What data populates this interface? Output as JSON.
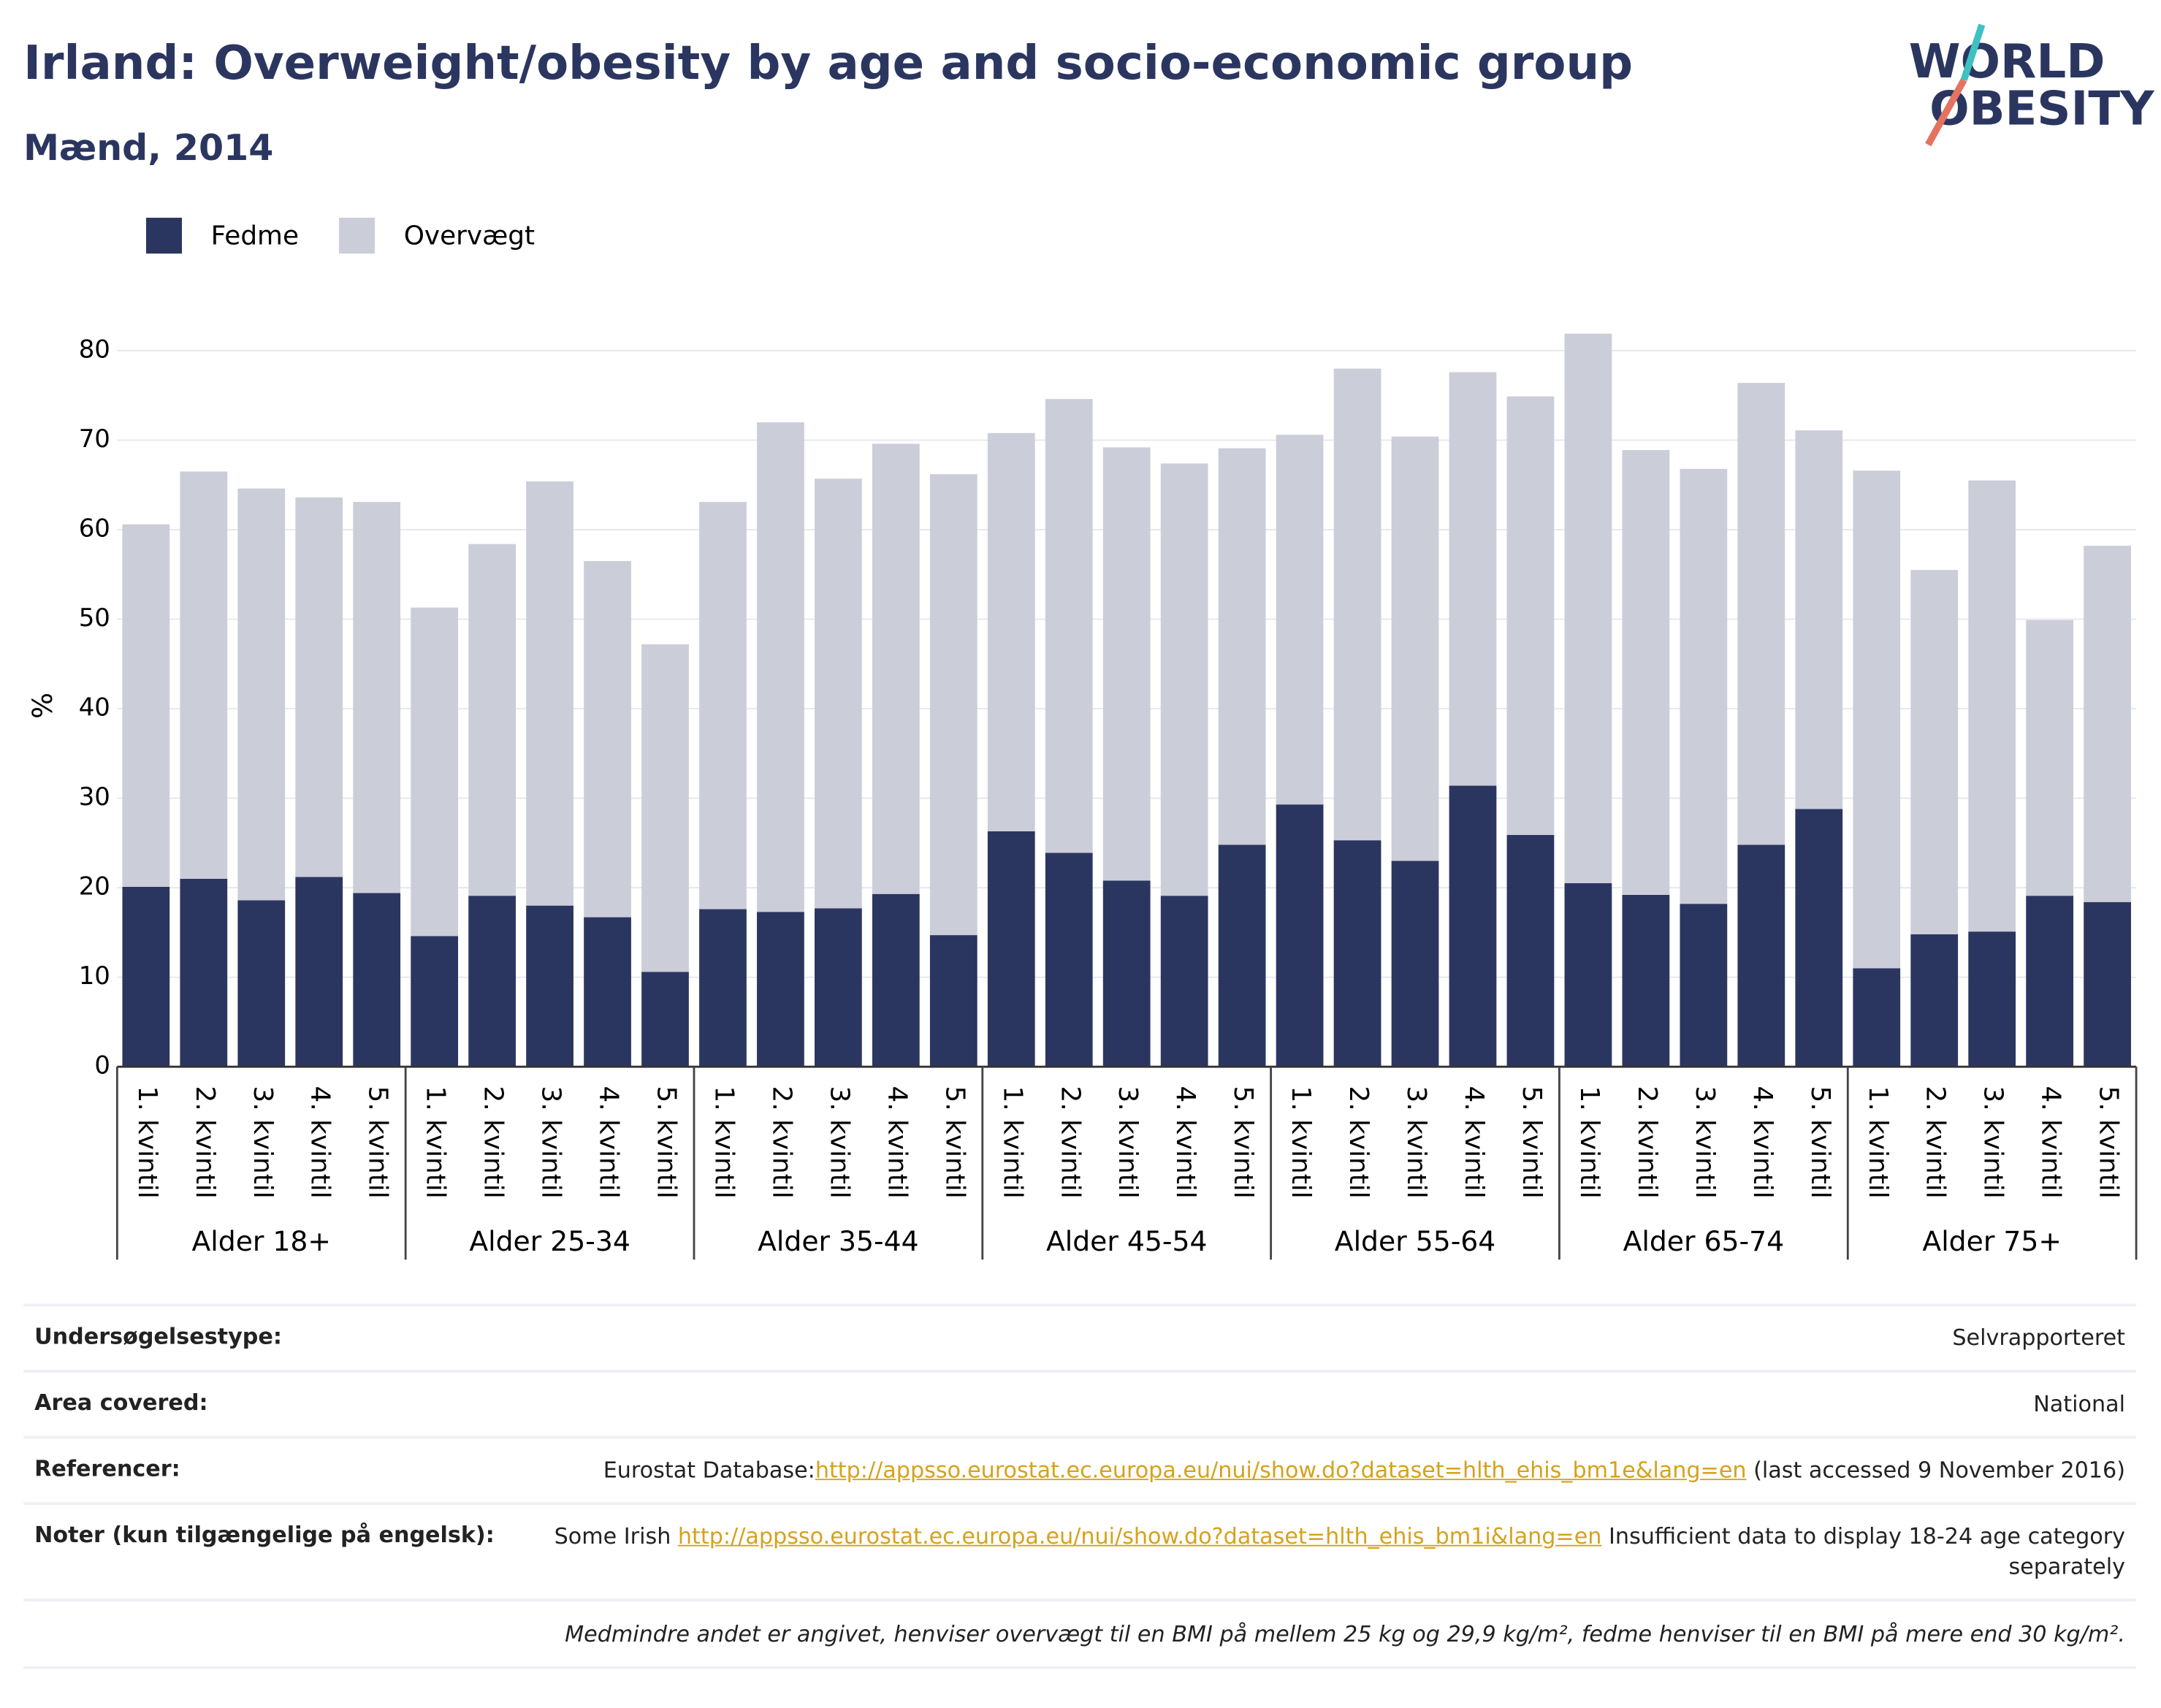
{
  "chart_data": {
    "type": "stacked_bar",
    "title": "Irland: Overweight/obesity by age and socio-economic group",
    "subtitle": "Mænd, 2014",
    "y_label": "%",
    "categories": [
      "1. kvintil",
      "2. kvintil",
      "3. kvintil",
      "4. kvintil",
      "5. kvintil",
      "1. kvintil",
      "2. kvintil",
      "3. kvintil",
      "4. kvintil",
      "5. kvintil",
      "1. kvintil",
      "2. kvintil",
      "3. kvintil",
      "4. kvintil",
      "5. kvintil",
      "1. kvintil",
      "2. kvintil",
      "3. kvintil",
      "4. kvintil",
      "5. kvintil",
      "1. kvintil",
      "2. kvintil",
      "3. kvintil",
      "4. kvintil",
      "5. kvintil",
      "1. kvintil",
      "2. kvintil",
      "3. kvintil",
      "4. kvintil",
      "5. kvintil",
      "1. kvintil",
      "2. kvintil",
      "3. kvintil",
      "4. kvintil",
      "5. kvintil"
    ],
    "groups": [
      "Alder 18+",
      "Alder 25-34",
      "Alder 35-44",
      "Alder 45-54",
      "Alder 55-64",
      "Alder 65-74",
      "Alder 75+"
    ],
    "series": [
      {
        "name": "Fedme",
        "color": "#2b3660",
        "values": [
          20.1,
          21,
          18.6,
          21.2,
          19.4,
          14.6,
          19.1,
          18,
          16.7,
          10.6,
          17.6,
          17.3,
          17.7,
          19.3,
          14.7,
          26.3,
          23.9,
          20.8,
          19.1,
          24.8,
          29.3,
          25.3,
          23,
          31.4,
          25.9,
          20.5,
          19.2,
          18.2,
          24.8,
          28.8,
          11,
          14.8,
          15.1,
          19.1,
          18.4
        ]
      },
      {
        "name": "Overvægt",
        "color": "#cbcdd9",
        "values": [
          40.5,
          45.5,
          46.0,
          42.4,
          43.7,
          36.7,
          39.3,
          47.4,
          39.8,
          36.6,
          45.5,
          54.7,
          48.0,
          50.3,
          51.5,
          44.5,
          50.7,
          48.4,
          48.3,
          44.3,
          41.3,
          52.7,
          47.4,
          46.2,
          49.0,
          61.4,
          49.7,
          48.6,
          51.6,
          42.3,
          55.6,
          40.7,
          50.4,
          30.8,
          39.8
        ]
      }
    ],
    "ylim": [
      0,
      85
    ],
    "yticks": [
      0,
      10,
      20,
      30,
      40,
      50,
      60,
      70,
      80
    ],
    "grid": true,
    "legend": "top-left"
  },
  "logo": {
    "line1": "WORLD",
    "line2": "OBESITY"
  },
  "info": [
    {
      "label": "Undersøgelsestype:",
      "value": "Selvrapporteret"
    },
    {
      "label": "Area covered:",
      "value": "National"
    },
    {
      "label": "Referencer:",
      "prefix": "Eurostat Database:",
      "link": "http://appsso.eurostat.ec.europa.eu/nui/show.do?dataset=hlth_ehis_bm1e&lang=en",
      "suffix": " (last accessed 9 November 2016)"
    },
    {
      "label": "Noter (kun tilgængelige på engelsk):",
      "prefix": "Some Irish ",
      "link": "http://appsso.eurostat.ec.europa.eu/nui/show.do?dataset=hlth_ehis_bm1i&lang=en",
      "suffix": " Insufficient data to display 18-24 age category separately"
    }
  ],
  "footnote": "Medmindre andet er angivet, henviser overvægt til en BMI på mellem 25 kg og 29,9 kg/m², fedme henviser til en BMI på mere end 30 kg/m²."
}
